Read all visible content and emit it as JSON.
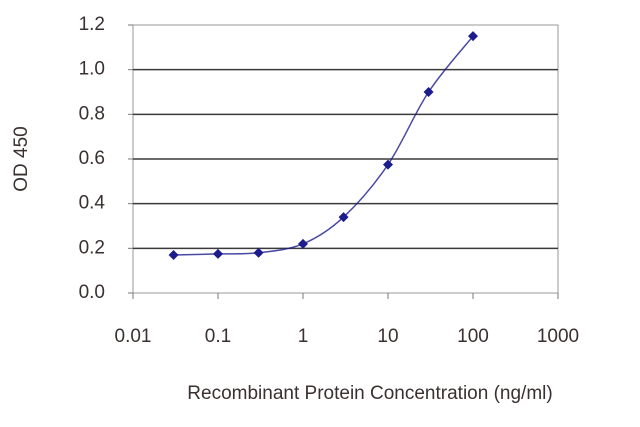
{
  "chart_data": {
    "type": "line",
    "x_label": "Recombinant Protein Concentration (ng/ml)",
    "y_label": "OD 450",
    "x": [
      0.03,
      0.1,
      0.3,
      1,
      3,
      10,
      30,
      100
    ],
    "series": [
      {
        "color": "#1c1c8c",
        "values": [
          0.17,
          0.175,
          0.18,
          0.22,
          0.34,
          0.575,
          0.9,
          1.15
        ]
      }
    ],
    "x_log": true,
    "xlim": [
      0.01,
      1000
    ],
    "xticks": [
      0.01,
      0.1,
      1,
      10,
      100,
      1000
    ],
    "ylim": [
      0,
      1.2
    ],
    "yticks": [
      {
        "value": 0,
        "label": "0.0"
      },
      0.2,
      0.4,
      0.6,
      0.8,
      {
        "value": 1,
        "label": "1.0"
      },
      1.2
    ],
    "grid": true
  }
}
